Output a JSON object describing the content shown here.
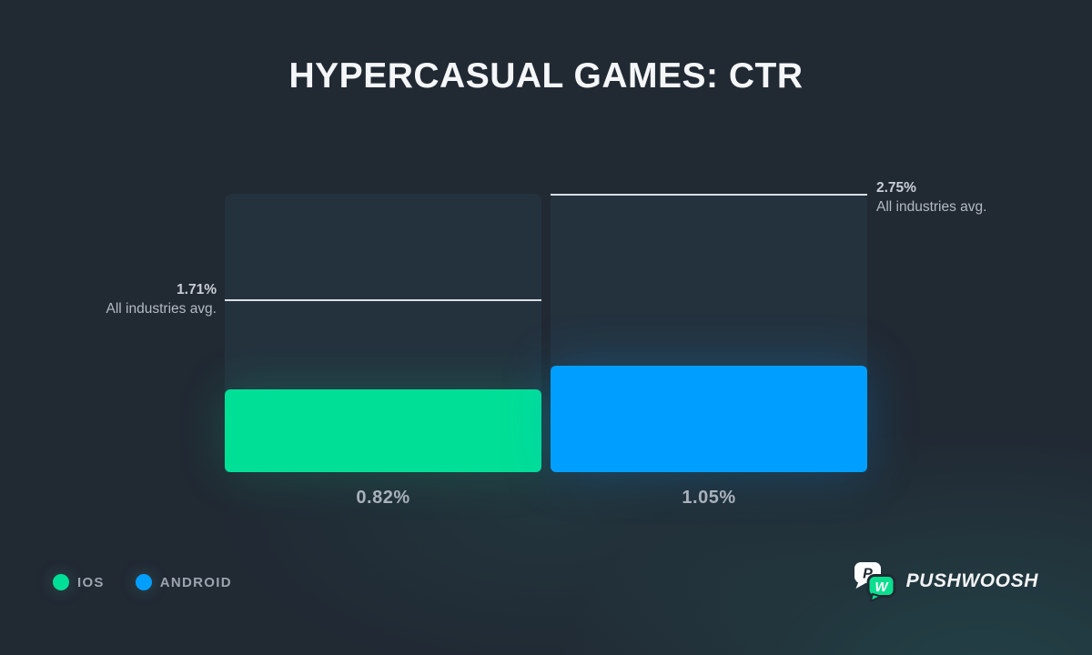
{
  "title": "HYPERCASUAL GAMES: CTR",
  "chart_data": {
    "type": "bar",
    "title": "HYPERCASUAL GAMES: CTR",
    "categories": [
      "IOS",
      "ANDROID"
    ],
    "values": [
      0.82,
      1.05
    ],
    "value_labels": [
      "0.82%",
      "1.05%"
    ],
    "colors": [
      "#00DF96",
      "#009FFF"
    ],
    "benchmarks": [
      {
        "value": 1.71,
        "label": "1.71%",
        "sublabel": "All industries avg."
      },
      {
        "value": 2.75,
        "label": "2.75%",
        "sublabel": "All industries avg."
      }
    ],
    "xlabel": "",
    "ylabel": "",
    "ylim": [
      0,
      2.75
    ],
    "grid": false,
    "legend_position": "bottom-left",
    "track_color": "#24323E",
    "benchmark_line_color": "#D9DEE3"
  },
  "legend": {
    "items": [
      {
        "label": "IOS",
        "color": "#00DF96",
        "icon": "ios-legend-dot"
      },
      {
        "label": "ANDROID",
        "color": "#009FFF",
        "icon": "android-legend-dot"
      }
    ]
  },
  "branding": {
    "name": "PUSHWOOSH",
    "icon": "pushwoosh-logo-icon",
    "letter_p": "P",
    "letter_w": "W",
    "bubble_white": "#FFFFFF",
    "bubble_green": "#0BDF8F"
  },
  "colors": {
    "background": "#212933",
    "title_text": "#F4F6F8",
    "label_text": "#A9B1BB",
    "benchmark_text": "#B3BAC3"
  }
}
